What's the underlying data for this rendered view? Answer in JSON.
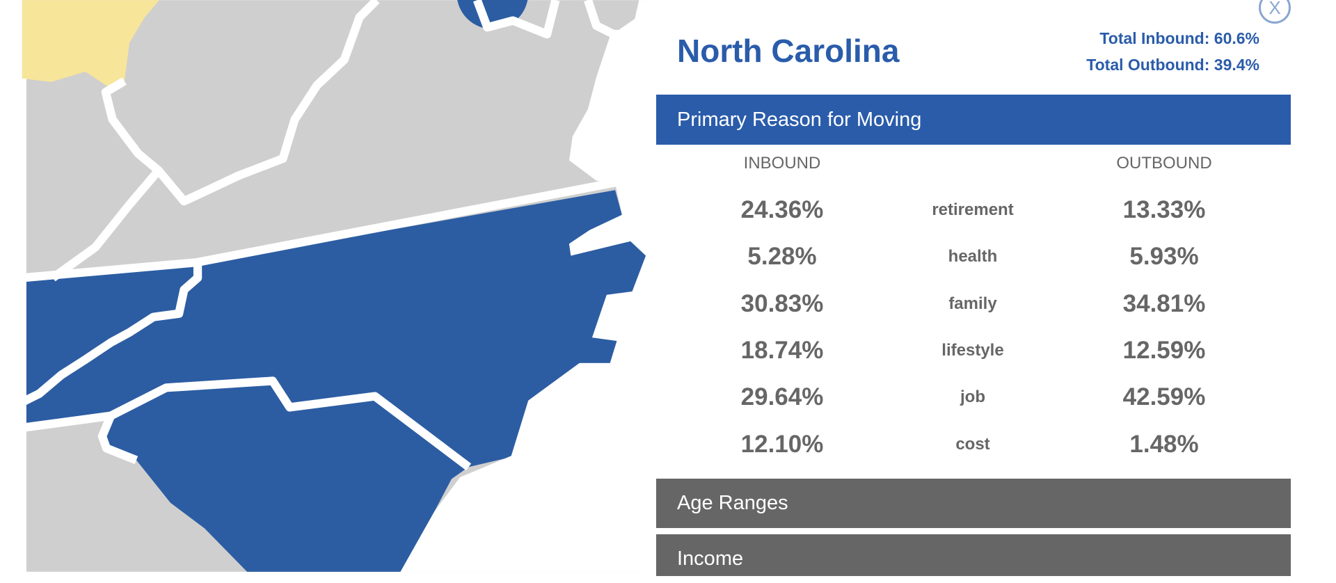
{
  "header": {
    "title": "North Carolina",
    "total_inbound": "Total Inbound: 60.6%",
    "total_outbound": "Total Outbound: 39.4%",
    "close": "X"
  },
  "sections": {
    "primary": "Primary Reason for Moving",
    "age": "Age Ranges",
    "income": "Income"
  },
  "table": {
    "columns": [
      "INBOUND",
      "OUTBOUND"
    ],
    "rows": [
      [
        "24.36%",
        "retirement",
        "13.33%"
      ],
      [
        "5.28%",
        "health",
        "5.93%"
      ],
      [
        "30.83%",
        "family",
        "34.81%"
      ],
      [
        "18.74%",
        "lifestyle",
        "12.59%"
      ],
      [
        "29.64%",
        "job",
        "42.59%"
      ],
      [
        "12.10%",
        "cost",
        "1.48%"
      ]
    ]
  }
}
